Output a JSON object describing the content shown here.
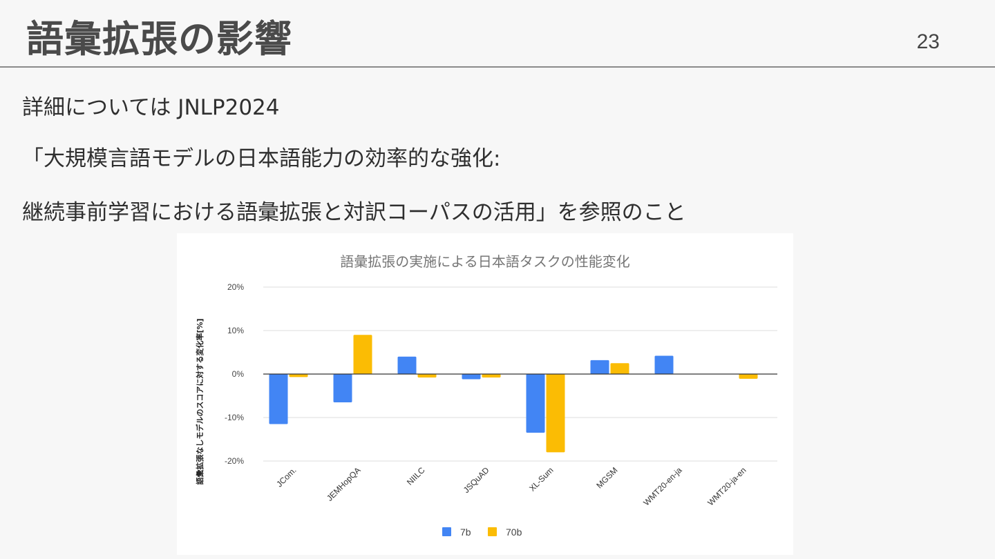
{
  "slide": {
    "title": "語彙拡張の影響",
    "page_number": "23",
    "lines": [
      "詳細については JNLP2024",
      "「大規模言語モデルの日本語能力の効率的な強化:",
      "継続事前学習における語彙拡張と対訳コーパスの活用」を参照のこと"
    ]
  },
  "chart_data": {
    "type": "bar",
    "title": "語彙拡張の実施による日本語タスクの性能変化",
    "xlabel": "",
    "ylabel": "語彙拡張なしモデルのスコアに対する変化率[%]",
    "categories": [
      "JCom.",
      "JEMHopQA",
      "NIILC",
      "JSQuAD",
      "XL-Sum",
      "MGSM",
      "WMT20-en-ja",
      "WMT20-ja-en"
    ],
    "series": [
      {
        "name": "7b",
        "color": "#4285f4",
        "values": [
          -11.5,
          -6.5,
          4.0,
          -1.2,
          -13.5,
          3.2,
          4.2,
          0.0
        ]
      },
      {
        "name": "70b",
        "color": "#fbbc04",
        "values": [
          -0.7,
          9.0,
          -0.8,
          -0.8,
          -18.0,
          2.5,
          0.0,
          -1.1
        ]
      }
    ],
    "ylim": [
      -20,
      20
    ],
    "yticks": [
      20,
      10,
      0,
      -10,
      -20
    ],
    "ytick_labels": [
      "20%",
      "10%",
      "0%",
      "-10%",
      "-20%"
    ],
    "grid": true,
    "legend_position": "bottom"
  }
}
